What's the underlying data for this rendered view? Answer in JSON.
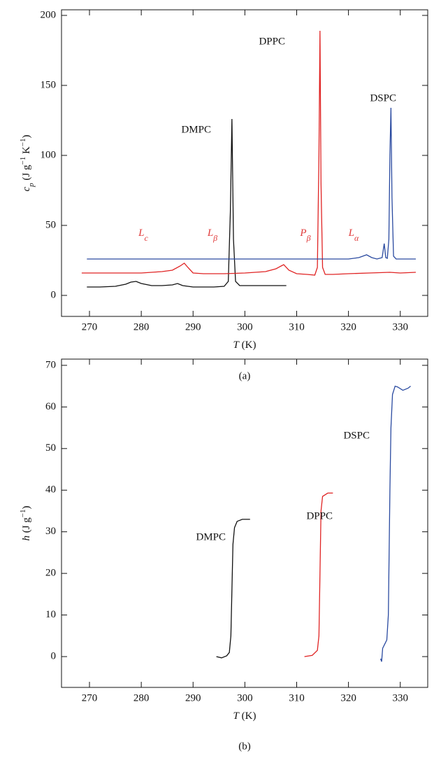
{
  "chart_data": [
    {
      "type": "line",
      "subcaption": "(a)",
      "xlabel": [
        {
          "text": "T",
          "italic": true
        },
        {
          "text": " (K)"
        }
      ],
      "ylabel": [
        {
          "text": "c",
          "italic": true
        },
        {
          "text": "p",
          "italic": true,
          "shift": "sub"
        },
        {
          "text": " (J g"
        },
        {
          "text": "−1",
          "shift": "sup"
        },
        {
          "text": " K"
        },
        {
          "text": "−1",
          "shift": "sup"
        },
        {
          "text": ")"
        }
      ],
      "xlim": [
        264.6,
        335.3
      ],
      "ylim": [
        -15,
        204
      ],
      "xticks": [
        270,
        280,
        290,
        300,
        310,
        320,
        330
      ],
      "yticks": [
        0,
        50,
        100,
        150,
        200
      ],
      "annotations": [
        {
          "text": "L",
          "sub": "c"
        },
        {
          "text": "L",
          "sub": "β"
        },
        {
          "text": "P",
          "sub": "β"
        },
        {
          "text": "L",
          "sub": "α"
        }
      ],
      "annotation_color": "#e03a3a",
      "series": [
        {
          "name": "DMPC",
          "color": "#111111",
          "x": [
            269.5,
            272,
            275,
            277,
            278,
            279,
            280,
            282,
            284,
            286,
            287,
            288,
            290,
            292,
            294,
            296,
            296.8,
            297.2,
            297.5,
            297.8,
            298.2,
            299,
            301,
            304,
            308
          ],
          "values": [
            6,
            6,
            6.5,
            8,
            9.5,
            10,
            8.5,
            7,
            7,
            7.5,
            8.5,
            7,
            6,
            6,
            6,
            6.5,
            10,
            60,
            126,
            40,
            10,
            7,
            7,
            7,
            7
          ]
        },
        {
          "name": "DPPC",
          "color": "#e02424",
          "x": [
            268.5,
            272,
            276,
            280,
            284,
            286,
            287.5,
            288.3,
            289,
            290,
            292,
            296,
            300,
            304,
            306,
            307,
            307.5,
            308.5,
            310,
            312,
            313.5,
            314,
            314.3,
            314.5,
            314.7,
            315,
            315.5,
            317,
            320,
            324,
            328,
            330,
            333
          ],
          "values": [
            16,
            16,
            16,
            16,
            17,
            18,
            21,
            23,
            20,
            16,
            15.5,
            15.5,
            16,
            17,
            19,
            21,
            22,
            18,
            15.5,
            15,
            14.5,
            20,
            100,
            189,
            80,
            20,
            15,
            15,
            15.5,
            16,
            16.5,
            16,
            16.5
          ]
        },
        {
          "name": "DSPC",
          "color": "#2a4aa0",
          "x": [
            269.5,
            275,
            280,
            285,
            290,
            295,
            300,
            305,
            310,
            315,
            320,
            322,
            323.5,
            324.5,
            325.5,
            326.5,
            326.9,
            327.2,
            327.5,
            327.8,
            328,
            328.2,
            328.4,
            328.7,
            329.2,
            330,
            333
          ],
          "values": [
            26,
            26,
            26,
            26,
            26,
            26,
            26,
            26,
            26,
            26,
            26,
            27,
            29,
            27,
            26,
            27,
            37,
            27,
            26.5,
            40,
            100,
            134,
            70,
            28,
            26,
            26,
            26
          ]
        }
      ]
    },
    {
      "type": "line",
      "subcaption": "(b)",
      "xlabel": [
        {
          "text": "T",
          "italic": true
        },
        {
          "text": " (K)"
        }
      ],
      "ylabel": [
        {
          "text": "h",
          "italic": true
        },
        {
          "text": " (J g"
        },
        {
          "text": "−1",
          "shift": "sup"
        },
        {
          "text": ")"
        }
      ],
      "xlim": [
        264.6,
        335.3
      ],
      "ylim": [
        -7.4,
        71.5
      ],
      "xticks": [
        270,
        280,
        290,
        300,
        310,
        320,
        330
      ],
      "yticks": [
        0,
        10,
        20,
        30,
        40,
        50,
        60,
        70
      ],
      "series": [
        {
          "name": "DMPC",
          "color": "#111111",
          "x": [
            294.5,
            295.5,
            296.5,
            297,
            297.3,
            297.5,
            297.7,
            298,
            298.5,
            299.5,
            301
          ],
          "values": [
            0,
            -0.3,
            0.2,
            1,
            5,
            16,
            27,
            31,
            32.5,
            33,
            33
          ]
        },
        {
          "name": "DPPC",
          "color": "#e02424",
          "x": [
            311.5,
            313,
            314,
            314.3,
            314.5,
            314.7,
            315,
            316,
            317
          ],
          "values": [
            0,
            0.3,
            1.5,
            5,
            20,
            35,
            38.5,
            39.3,
            39.3
          ]
        },
        {
          "name": "DSPC",
          "color": "#2a4aa0",
          "x": [
            326.2,
            326.4,
            326.6,
            327,
            327.4,
            327.7,
            328,
            328.2,
            328.5,
            329,
            329.5,
            330.5,
            331.5,
            332
          ],
          "values": [
            -0.5,
            -1.2,
            2,
            3,
            4,
            10,
            40,
            55,
            63,
            65,
            64.8,
            64,
            64.5,
            65
          ]
        }
      ]
    }
  ]
}
